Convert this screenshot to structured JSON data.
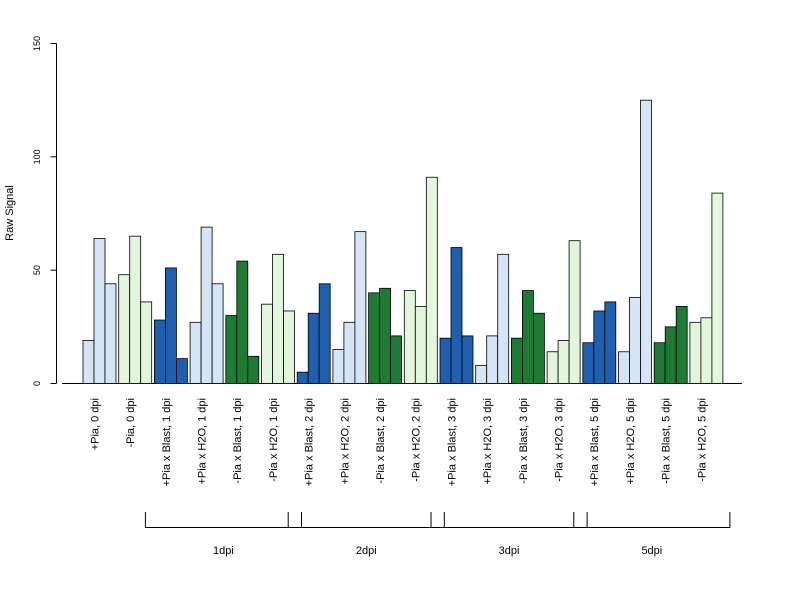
{
  "chart_data": {
    "type": "bar",
    "ylabel": "Raw Signal",
    "ylim": [
      0,
      150
    ],
    "yticks": [
      0,
      50,
      100,
      150
    ],
    "grid": false,
    "categories": [
      "+Pia, 0 dpi",
      "-Pia, 0 dpi",
      "+Pia x Blast, 1 dpi",
      "+Pia x H2O, 1 dpi",
      "-Pia x Blast, 1 dpi",
      "-Pia x H2O, 1 dpi",
      "+Pia x Blast, 2 dpi",
      "+Pia x H2O, 2 dpi",
      "-Pia x Blast, 2 dpi",
      "-Pia x H2O, 2 dpi",
      "+Pia x Blast, 3 dpi",
      "+Pia x H2O, 3 dpi",
      "-Pia x Blast, 3 dpi",
      "-Pia x H2O, 3 dpi",
      "+Pia x Blast, 5 dpi",
      "+Pia x H2O, 5 dpi",
      "-Pia x Blast, 5 dpi",
      "-Pia x H2O, 5 dpi"
    ],
    "replicates": [
      [
        19,
        64,
        44
      ],
      [
        48,
        65,
        36
      ],
      [
        28,
        51,
        11
      ],
      [
        27,
        69,
        44
      ],
      [
        30,
        54,
        12
      ],
      [
        35,
        57,
        32
      ],
      [
        5,
        31,
        44
      ],
      [
        15,
        27,
        67
      ],
      [
        40,
        42,
        21
      ],
      [
        41,
        34,
        91
      ],
      [
        20,
        60,
        21
      ],
      [
        8,
        21,
        57
      ],
      [
        20,
        41,
        31
      ],
      [
        14,
        19,
        63
      ],
      [
        18,
        32,
        36
      ],
      [
        14,
        38,
        125
      ],
      [
        18,
        25,
        34
      ],
      [
        27,
        29,
        84
      ]
    ],
    "category_colors": [
      "#d6e5f5",
      "#e3f5dc",
      "#1f5fad",
      "#d6e5f5",
      "#1f7a36",
      "#e3f5dc",
      "#1f5fad",
      "#d6e5f5",
      "#1f7a36",
      "#e3f5dc",
      "#1f5fad",
      "#d6e5f5",
      "#1f7a36",
      "#e3f5dc",
      "#1f5fad",
      "#d6e5f5",
      "#1f7a36",
      "#e3f5dc"
    ],
    "groups": [
      {
        "label": "1dpi",
        "first": 2,
        "last": 5
      },
      {
        "label": "2dpi",
        "first": 6,
        "last": 9
      },
      {
        "label": "3dpi",
        "first": 10,
        "last": 13
      },
      {
        "label": "5dpi",
        "first": 14,
        "last": 17
      }
    ]
  }
}
